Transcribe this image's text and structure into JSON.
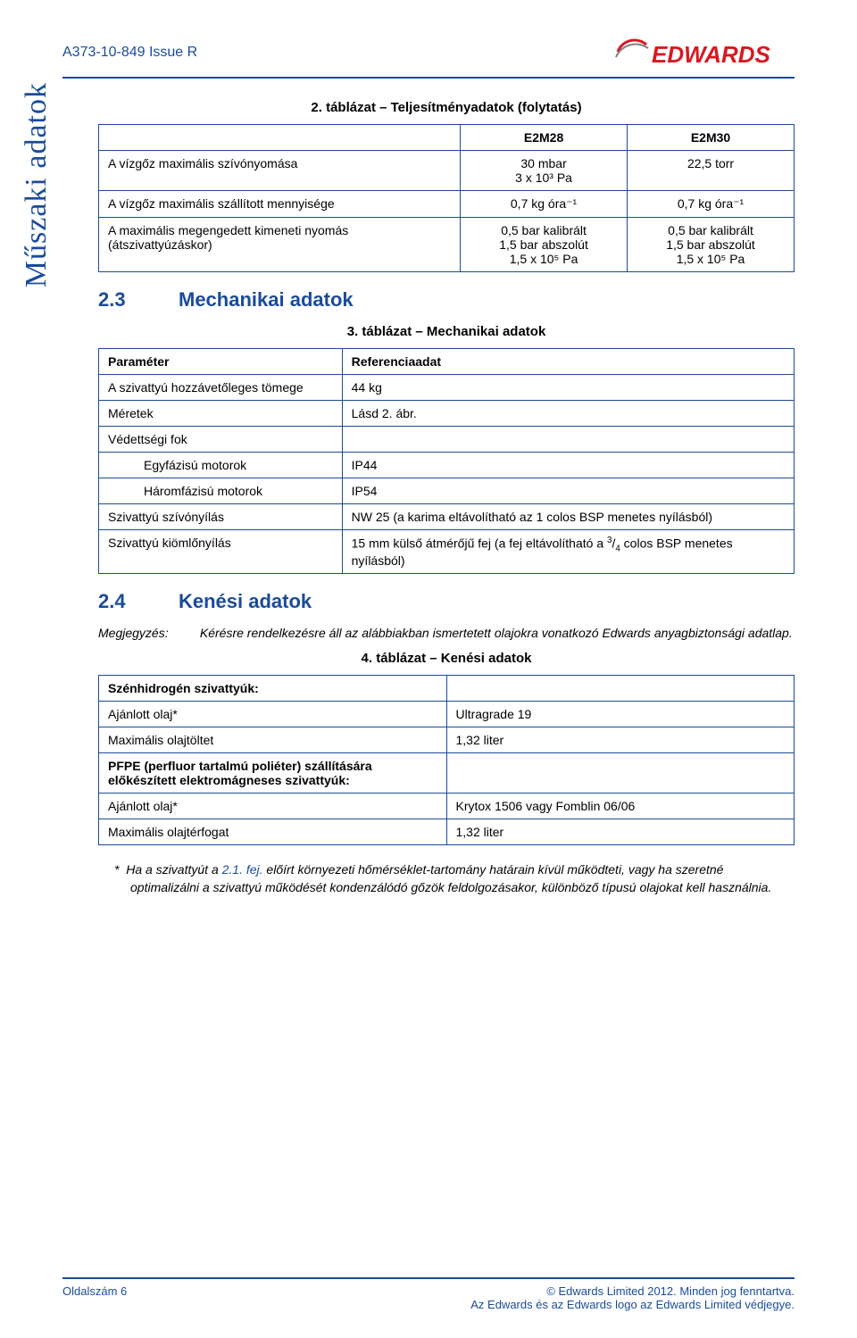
{
  "colors": {
    "accent": "#1a4b9b",
    "logo_red": "#d71920",
    "text": "#000000",
    "bg": "#ffffff"
  },
  "typography": {
    "body_pt": 14,
    "heading_pt": 22,
    "caption_pt": 15,
    "doc_id_pt": 16,
    "side_pt": 34,
    "footer_pt": 13
  },
  "header": {
    "doc_id": "A373-10-849 Issue R",
    "brand": "EDWARDS"
  },
  "side_label": "Műszaki adatok",
  "table2": {
    "caption": "2. táblázat – Teljesítményadatok (folytatás)",
    "columns": [
      "",
      "E2M28",
      "E2M30"
    ],
    "col_widths": [
      "52%",
      "24%",
      "24%"
    ],
    "rows": [
      {
        "label": "A vízgőz maximális szívónyomása",
        "c2_lines": [
          "30 mbar",
          "3 x 10³ Pa"
        ],
        "c3_lines": [
          "22,5 torr"
        ]
      },
      {
        "label": "A vízgőz maximális szállított mennyisége",
        "c2_lines": [
          "0,7 kg óra⁻¹"
        ],
        "c3_lines": [
          "0,7 kg óra⁻¹"
        ]
      },
      {
        "label": "A maximális megengedett kimeneti nyomás (átszivattyúzáskor)",
        "c2_lines": [
          "0,5 bar kalibrált",
          "1,5 bar abszolút",
          "1,5 x 10⁵ Pa"
        ],
        "c3_lines": [
          "0,5 bar kalibrált",
          "1,5 bar abszolút",
          "1,5 x 10⁵ Pa"
        ]
      }
    ]
  },
  "sec23": {
    "num": "2.3",
    "title": "Mechanikai adatok"
  },
  "table3": {
    "caption": "3. táblázat – Mechanikai adatok",
    "columns": [
      "Paraméter",
      "Referenciaadat"
    ],
    "col_widths": [
      "35%",
      "65%"
    ],
    "rows": [
      {
        "c1": "A szivattyú hozzávetőleges tömege",
        "c2": "44 kg"
      },
      {
        "c1": "Méretek",
        "c2": "Lásd 2. ábr."
      },
      {
        "c1": "Védettségi fok",
        "c2": ""
      },
      {
        "c1": "Egyfázisú motorok",
        "c2": "IP44",
        "indent": true
      },
      {
        "c1": "Háromfázisú motorok",
        "c2": "IP54",
        "indent": true
      },
      {
        "c1": "Szivattyú szívónyílás",
        "c2": "NW 25 (a karima eltávolítható az 1 colos BSP menetes nyílásból)"
      },
      {
        "c1": "Szivattyú kiömlőnyílás",
        "c2_html": "15 mm külső átmérőjű fej (a fej eltávolítható a <sup>3</sup>/<span class=\"sub\">4</span> colos BSP menetes nyílásból)"
      }
    ]
  },
  "sec24": {
    "num": "2.4",
    "title": "Kenési adatok"
  },
  "note": {
    "label": "Megjegyzés:",
    "text": "Kérésre rendelkezésre áll az alábbiakban ismertetett olajokra vonatkozó Edwards anyagbiztonsági adatlap."
  },
  "table4": {
    "caption": "4. táblázat – Kenési adatok",
    "col_widths": [
      "50%",
      "50%"
    ],
    "rows": [
      {
        "c1": "Szénhidrogén szivattyúk:",
        "c1_bold": true,
        "c2": ""
      },
      {
        "c1": "Ajánlott olaj*",
        "c2": "Ultragrade 19"
      },
      {
        "c1": "Maximális olajtöltet",
        "c2": "1,32 liter"
      },
      {
        "c1": "PFPE (perfluor tartalmú poliéter) szállítására előkészített elektromágneses szivattyúk:",
        "c1_bold": true,
        "c2": ""
      },
      {
        "c1": "Ajánlott olaj*",
        "c2": "Krytox 1506 vagy Fomblin 06/06"
      },
      {
        "c1": "Maximális olajtérfogat",
        "c2": "1,32 liter"
      }
    ]
  },
  "footnote": {
    "marker": "*",
    "prefix": "Ha a szivattyút a ",
    "ref": "2.1. fej.",
    "rest": " előírt környezeti hőmérséklet-tartomány határain kívül működteti, vagy ha szeretné optimalizálni a szivattyú működését kondenzálódó gőzök feldolgozásakor, különböző típusú olajokat kell használnia."
  },
  "footer": {
    "left": "Oldalszám 6",
    "right1": "© Edwards Limited 2012. Minden jog fenntartva.",
    "right2": "Az Edwards és az Edwards logo az Edwards Limited védjegye."
  }
}
